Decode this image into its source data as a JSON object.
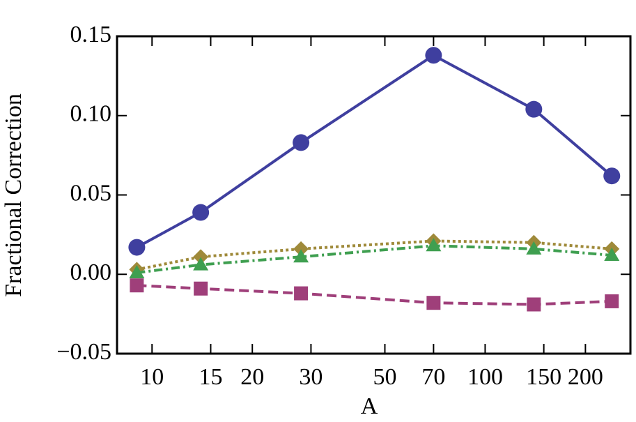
{
  "chart_data": {
    "type": "line",
    "x_label": "A",
    "y_label": "Fractional Correction",
    "x": [
      9,
      14,
      28,
      70,
      140,
      240
    ],
    "xscale": "log",
    "xlim": [
      7.85,
      273
    ],
    "xticks": [
      10,
      15,
      20,
      30,
      50,
      70,
      100,
      150,
      200
    ],
    "ylim": [
      -0.05,
      0.15
    ],
    "yticks": [
      {
        "value": -0.05,
        "label": "−0.05"
      },
      {
        "value": 0,
        "label": "0.00"
      },
      0.05,
      {
        "value": 0.1,
        "label": "0.10"
      },
      0.15
    ],
    "series": [
      {
        "color": "#3f3f9f",
        "marker": "circle",
        "dash": "solid",
        "values": [
          0.017,
          0.039,
          0.083,
          0.138,
          0.104,
          0.062
        ]
      },
      {
        "color": "#9f8a3a",
        "marker": "diamond",
        "dash": "dotted",
        "values": [
          0.003,
          0.011,
          0.016,
          0.021,
          0.02,
          0.016
        ]
      },
      {
        "color": "#3f9f50",
        "marker": "triangle",
        "dash": "dashdot",
        "values": [
          0.001,
          0.006,
          0.011,
          0.018,
          0.016,
          0.012
        ]
      },
      {
        "color": "#9f3f7a",
        "marker": "square",
        "dash": "dashed",
        "values": [
          -0.007,
          -0.009,
          -0.012,
          -0.018,
          -0.019,
          -0.017
        ]
      }
    ]
  }
}
